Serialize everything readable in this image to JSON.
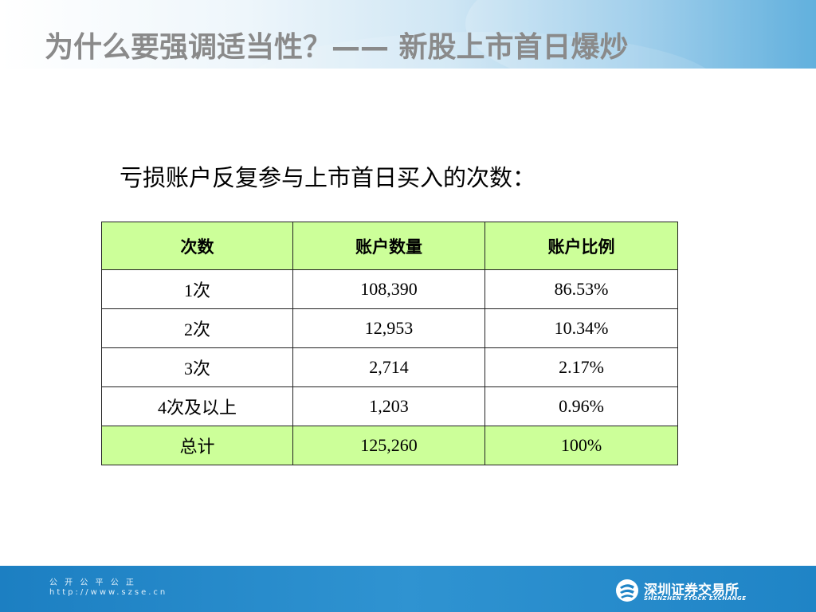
{
  "slide": {
    "title": "为什么要强调适当性？——  新股上市首日爆炒",
    "subtitle": "亏损账户反复参与上市首日买入的次数："
  },
  "table": {
    "headers": [
      "次数",
      "账户数量",
      "账户比例"
    ],
    "rows": [
      [
        "1次",
        "108,390",
        "86.53%"
      ],
      [
        "2次",
        "12,953",
        "10.34%"
      ],
      [
        "3次",
        "2,714",
        "2.17%"
      ],
      [
        "4次及以上",
        "1,203",
        "0.96%"
      ]
    ],
    "total": [
      "总计",
      "125,260",
      "100%"
    ]
  },
  "footer": {
    "motto": "公 开  公 平  公 正",
    "url": "http://www.szse.cn",
    "logo_cn": "深圳证券交易所",
    "logo_en": "SHENZHEN STOCK EXCHANGE"
  },
  "colors": {
    "header_fill": "#ccff99",
    "footer_blue": "#2f93d1",
    "title_gray": "#8a8a8a"
  }
}
